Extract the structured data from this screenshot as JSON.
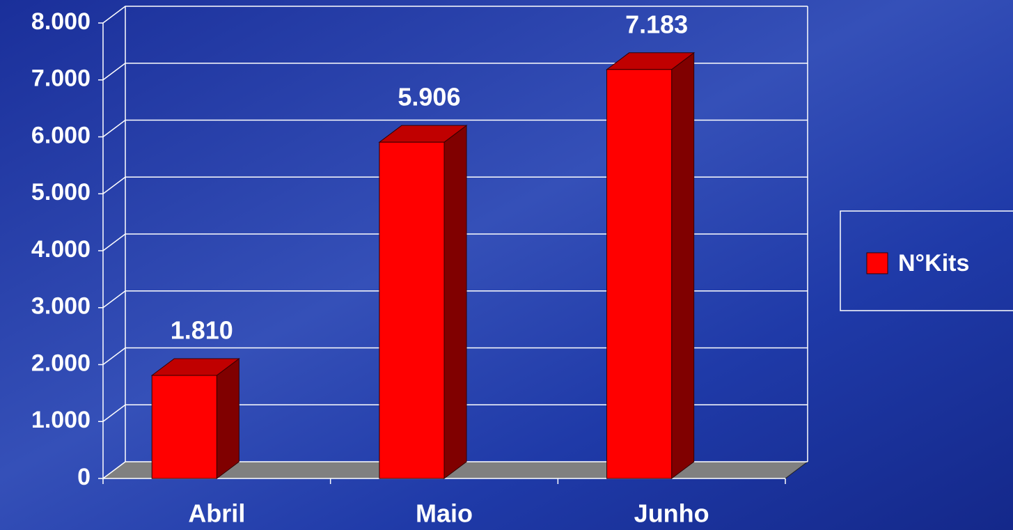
{
  "chart_data": {
    "type": "bar3d",
    "categories": [
      "Abril",
      "Maio",
      "Junho"
    ],
    "series": [
      {
        "name": "N°Kits",
        "color": "#ff0000",
        "values": [
          1810,
          5906,
          7183
        ],
        "value_labels": [
          "1.810",
          "5.906",
          "7.183"
        ]
      }
    ],
    "ylim": [
      0,
      8000
    ],
    "yticks": [
      0,
      {
        "value": 1000,
        "label": "1.000"
      },
      {
        "value": 2000,
        "label": "2.000"
      },
      {
        "value": 3000,
        "label": "3.000"
      },
      {
        "value": 4000,
        "label": "4.000"
      },
      {
        "value": 5000,
        "label": "5.000"
      },
      {
        "value": 6000,
        "label": "6.000"
      },
      {
        "value": 7000,
        "label": "7.000"
      },
      {
        "value": 8000,
        "label": "8.000"
      }
    ],
    "grid": true,
    "legend": "right"
  }
}
